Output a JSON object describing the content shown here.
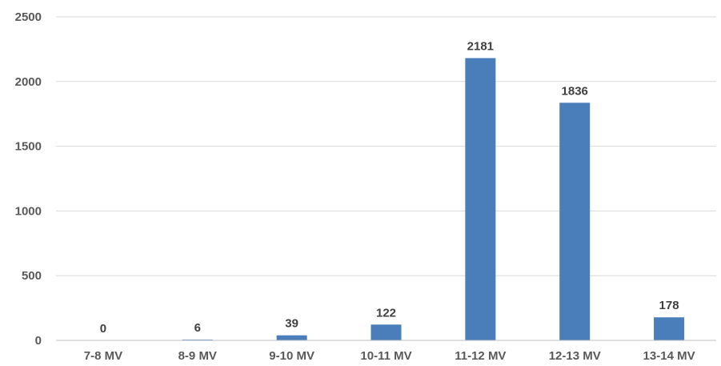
{
  "chart_data": {
    "type": "bar",
    "title": "",
    "xlabel": "",
    "ylabel": "",
    "categories": [
      "7-8 MV",
      "8-9 MV",
      "9-10 MV",
      "10-11 MV",
      "11-12 MV",
      "12-13 MV",
      "13-14 MV"
    ],
    "values": [
      0,
      6,
      39,
      122,
      2181,
      1836,
      178
    ],
    "data_labels": [
      "0",
      "6",
      "39",
      "122",
      "2181",
      "1836",
      "178"
    ],
    "ylim": [
      0,
      2500
    ],
    "yticks": [
      0,
      500,
      1000,
      1500,
      2000,
      2500
    ],
    "ytick_labels": [
      "0",
      "500",
      "1000",
      "1500",
      "2000",
      "2500"
    ],
    "grid": true,
    "legend": "none",
    "colors": {
      "bar": "#4a7ebb",
      "gridline": "#d9d9d9"
    }
  }
}
